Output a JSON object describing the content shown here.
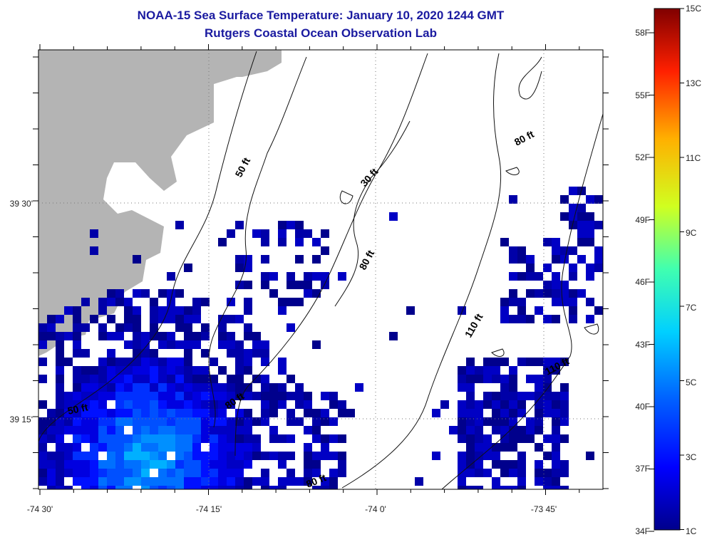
{
  "title": "NOAA-15 Sea Surface Temperature:  January 10, 2020 1244 GMT",
  "subtitle": "Rutgers Coastal Ocean Observation Lab",
  "x_ticks": [
    "-74 30'",
    "-74 15'",
    "-74 0'",
    "-73 45'"
  ],
  "y_ticks": [
    "39 30'",
    "39 15'"
  ],
  "contour_labels": [
    "50 ft",
    "30 ft",
    "80 ft",
    "80 ft",
    "110 ft",
    "110 ft",
    "50 ft",
    "80 ft",
    "80 ft"
  ],
  "colorbar": {
    "fahrenheit": [
      "58F",
      "55F",
      "52F",
      "49F",
      "46F",
      "43F",
      "40F",
      "37F",
      "34F"
    ],
    "celsius": [
      "15C",
      "13C",
      "11C",
      "9C",
      "7C",
      "5C",
      "3C",
      "1C"
    ]
  },
  "colors": {
    "land": "#b4b4b4",
    "title": "#1a1aa0",
    "cold": "#00008c"
  }
}
